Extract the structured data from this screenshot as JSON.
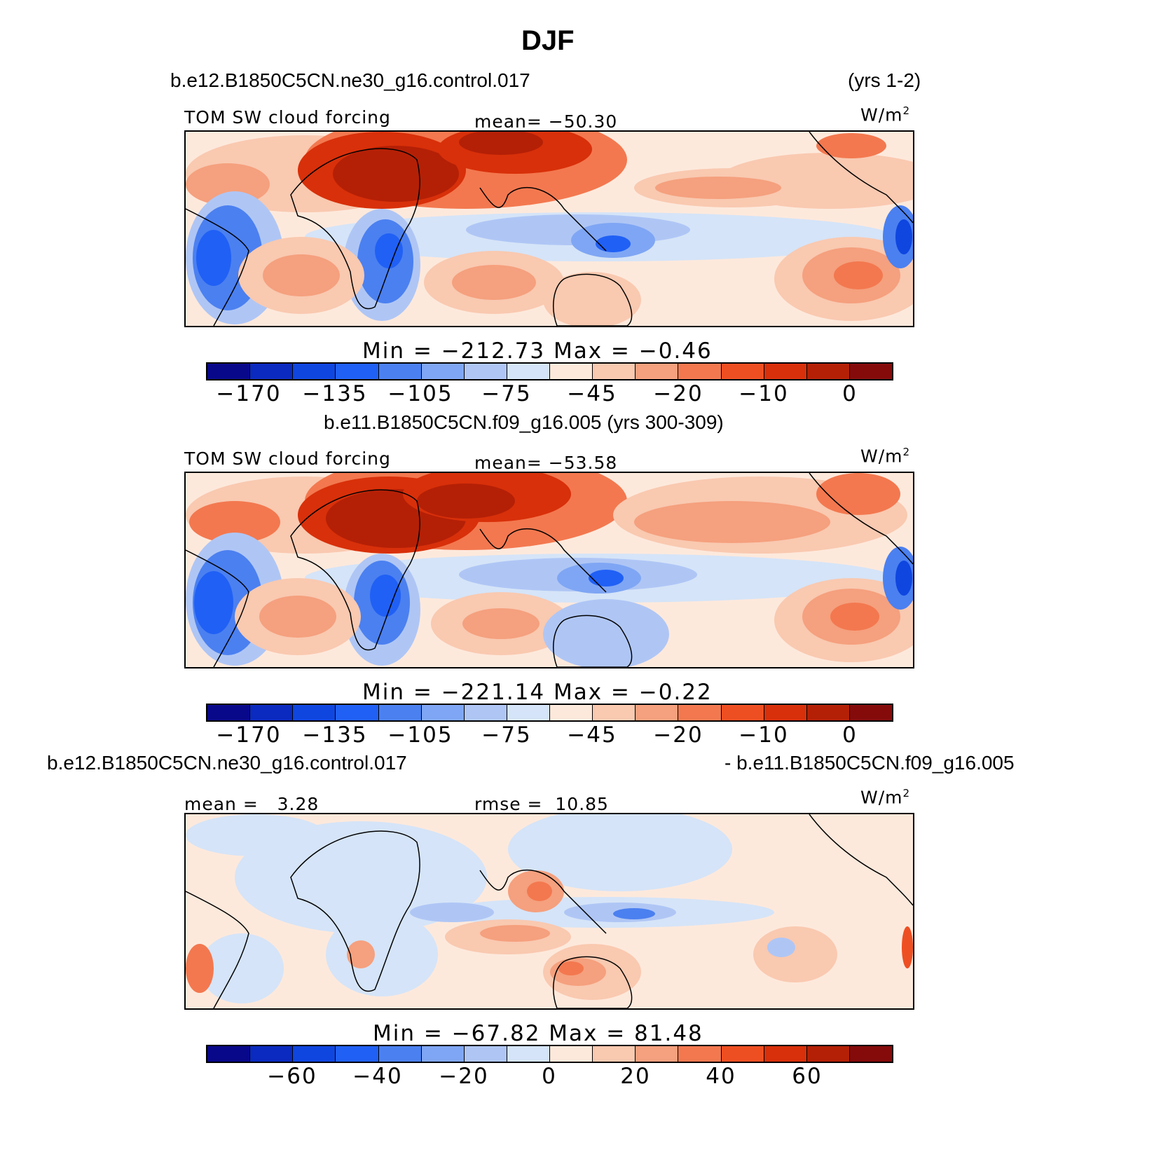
{
  "title": "DJF",
  "colors": [
    "#08088a",
    "#0a2ac0",
    "#0f46e0",
    "#2060f5",
    "#4b80f0",
    "#7fa6f4",
    "#afc6f5",
    "#d5e4f8",
    "#fde9dc",
    "#f9c9b0",
    "#f5a07e",
    "#f3784f",
    "#ee4f22",
    "#d8300a",
    "#b42006",
    "#850b0b"
  ],
  "panels": [
    {
      "header_left": "b.e12.B1850C5CN.ne30_g16.control.017",
      "header_right": "(yrs 1-2)",
      "variable": "TOM SW cloud forcing",
      "stat": "mean= −50.30",
      "units": "W/m",
      "units_sup": "2",
      "minmax": "Min = −212.73 Max =  −0.46",
      "ticks": [
        "−170",
        "−135",
        "−105",
        "−75",
        "−45",
        "−20",
        "−10",
        "0"
      ]
    },
    {
      "header_center": "b.e11.B1850C5CN.f09_g16.005 (yrs 300-309)",
      "variable": "TOM SW cloud forcing",
      "stat": "mean= −53.58",
      "units": "W/m",
      "units_sup": "2",
      "minmax": "Min = −221.14 Max =  −0.22",
      "ticks": [
        "−170",
        "−135",
        "−105",
        "−75",
        "−45",
        "−20",
        "−10",
        "0"
      ]
    },
    {
      "header_left": "b.e12.B1850C5CN.ne30_g16.control.017",
      "header_right": "- b.e11.B1850C5CN.f09_g16.005",
      "stat_left": "mean =   3.28",
      "stat": "rmse =  10.85",
      "units": "W/m",
      "units_sup": "2",
      "minmax": "Min = −67.82 Max =  81.48",
      "ticks": [
        "−60",
        "−40",
        "−20",
        "0",
        "20",
        "40",
        "60"
      ]
    }
  ]
}
